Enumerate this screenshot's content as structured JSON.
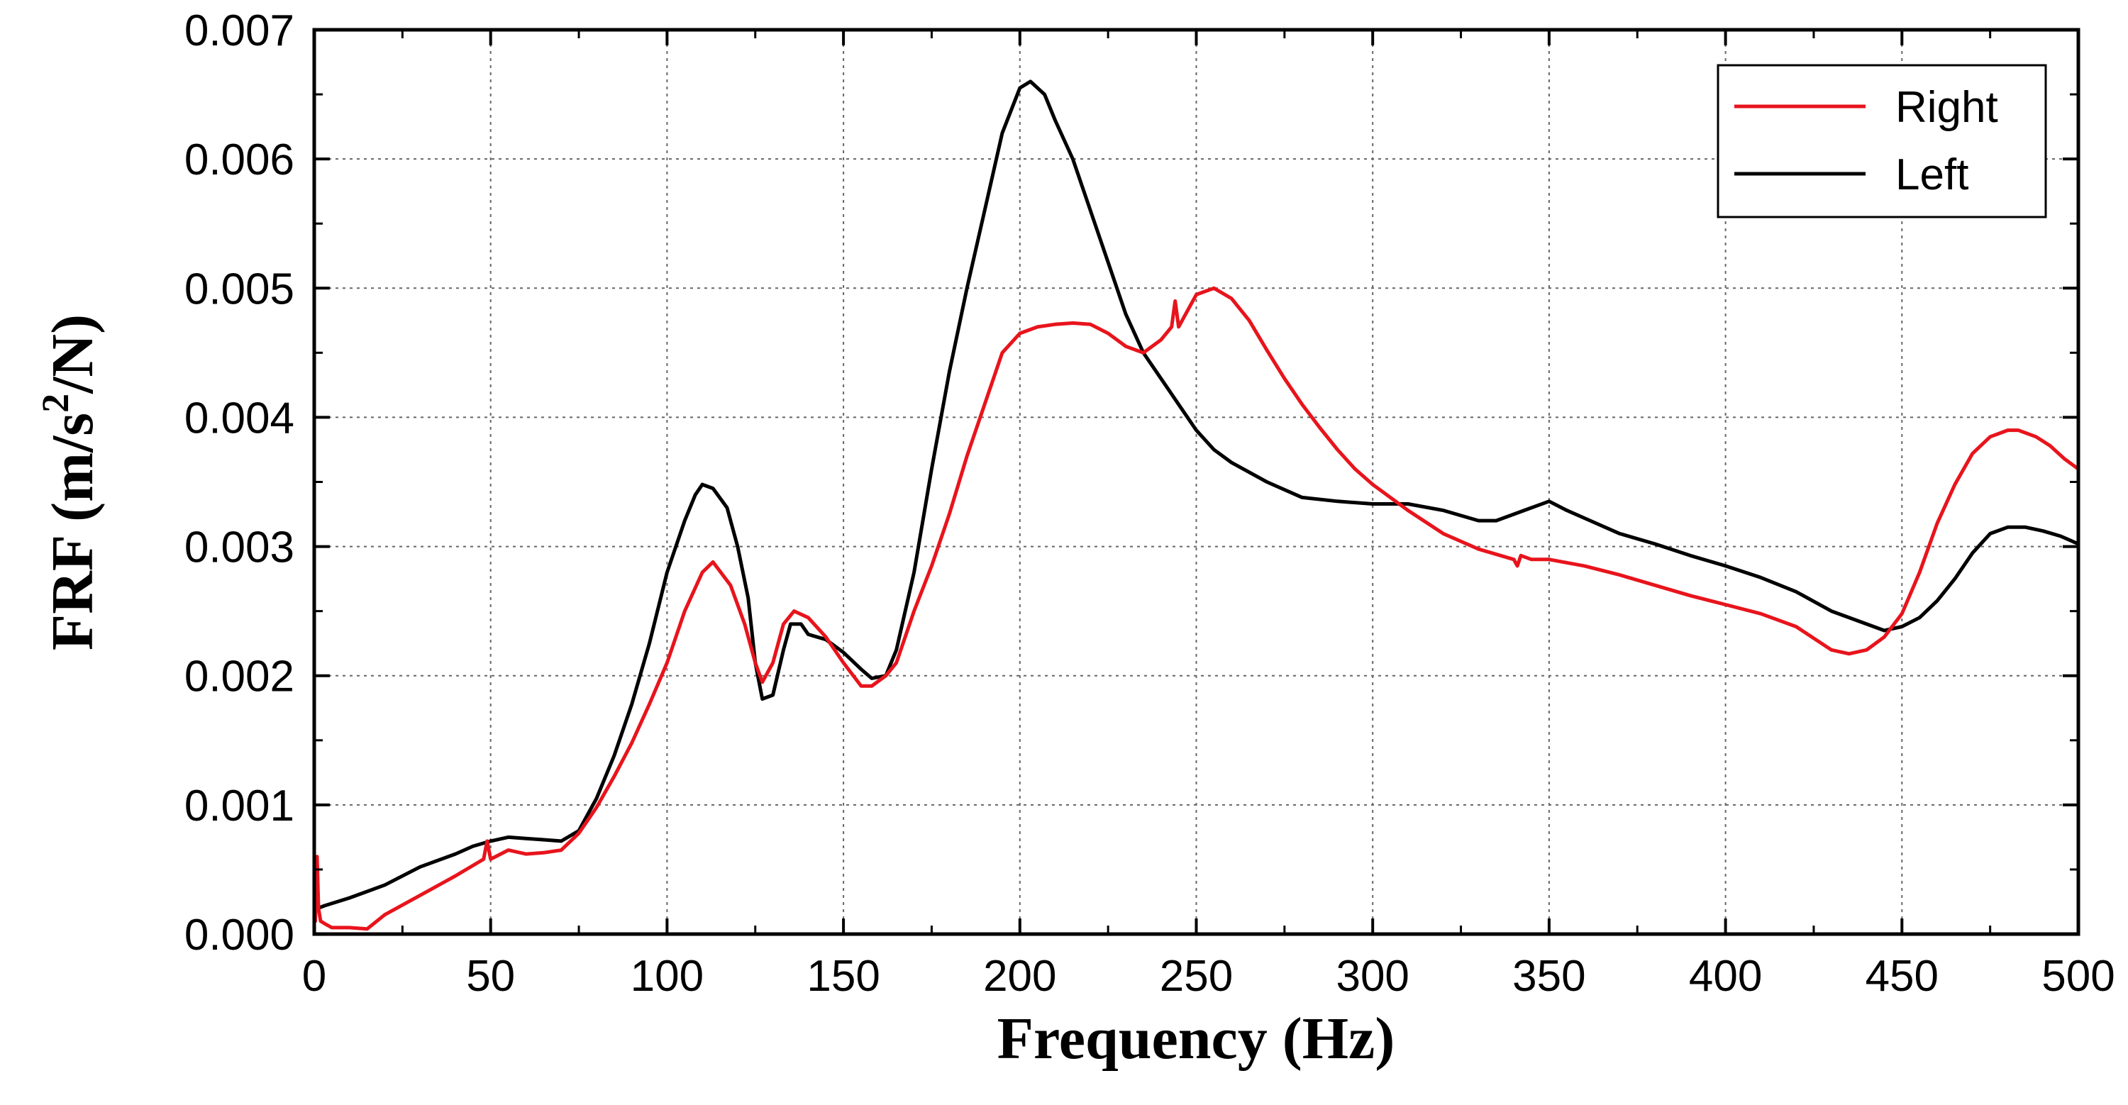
{
  "chart_data": {
    "type": "line",
    "xlabel": "Frequency (Hz)",
    "ylabel_parts": {
      "main": "FRF (m/s",
      "sup": "2",
      "tail": "/N)"
    },
    "xlim": [
      0,
      500
    ],
    "ylim": [
      0,
      0.007
    ],
    "xticks": [
      0,
      50,
      100,
      150,
      200,
      250,
      300,
      350,
      400,
      450,
      500
    ],
    "yticks": [
      0,
      0.001,
      0.002,
      0.003,
      0.004,
      0.005,
      0.006,
      0.007
    ],
    "xtick_labels": [
      "0",
      "50",
      "100",
      "150",
      "200",
      "250",
      "300",
      "350",
      "400",
      "450",
      "500"
    ],
    "ytick_labels": [
      "0.000",
      "0.001",
      "0.002",
      "0.003",
      "0.004",
      "0.005",
      "0.006",
      "0.007"
    ],
    "grid": true,
    "legend_position": "top-right",
    "colors": {
      "Right": "#e8141c",
      "Left": "#000000"
    },
    "series": [
      {
        "name": "Right",
        "color": "#e8141c",
        "x": [
          0.3,
          0.8,
          1.2,
          1.8,
          3,
          5,
          10,
          15,
          20,
          30,
          40,
          48,
          49,
          50,
          55,
          60,
          65,
          70,
          75,
          80,
          85,
          90,
          95,
          100,
          105,
          110,
          113,
          118,
          122,
          125,
          127,
          130,
          133,
          136,
          140,
          145,
          150,
          155,
          158,
          162,
          165,
          170,
          175,
          180,
          185,
          190,
          195,
          200,
          205,
          210,
          215,
          220,
          225,
          230,
          235,
          240,
          243,
          244,
          245,
          250,
          255,
          260,
          265,
          270,
          275,
          280,
          285,
          290,
          295,
          300,
          310,
          320,
          330,
          340,
          341,
          342,
          345,
          350,
          360,
          370,
          380,
          390,
          400,
          410,
          420,
          430,
          435,
          440,
          445,
          450,
          455,
          460,
          465,
          470,
          475,
          480,
          483,
          488,
          492,
          496,
          500
        ],
        "y": [
          0.0001,
          0.0006,
          0.0002,
          0.0001,
          8e-05,
          5e-05,
          5e-05,
          4e-05,
          0.00015,
          0.0003,
          0.00045,
          0.00058,
          0.00072,
          0.00058,
          0.00065,
          0.00062,
          0.00063,
          0.00065,
          0.00078,
          0.00098,
          0.00122,
          0.00148,
          0.00178,
          0.0021,
          0.0025,
          0.0028,
          0.00288,
          0.0027,
          0.0024,
          0.0021,
          0.00195,
          0.0021,
          0.0024,
          0.0025,
          0.00245,
          0.0023,
          0.0021,
          0.00192,
          0.00192,
          0.002,
          0.0021,
          0.0025,
          0.00285,
          0.00325,
          0.0037,
          0.0041,
          0.0045,
          0.00465,
          0.0047,
          0.00472,
          0.00473,
          0.00472,
          0.00465,
          0.00455,
          0.0045,
          0.0046,
          0.0047,
          0.0049,
          0.0047,
          0.00495,
          0.005,
          0.00492,
          0.00475,
          0.00452,
          0.0043,
          0.0041,
          0.00392,
          0.00375,
          0.0036,
          0.00348,
          0.00328,
          0.0031,
          0.00298,
          0.0029,
          0.00285,
          0.00293,
          0.0029,
          0.0029,
          0.00285,
          0.00278,
          0.0027,
          0.00262,
          0.00255,
          0.00248,
          0.00238,
          0.0022,
          0.00217,
          0.0022,
          0.0023,
          0.00248,
          0.0028,
          0.00318,
          0.00348,
          0.00372,
          0.00385,
          0.0039,
          0.0039,
          0.00385,
          0.00378,
          0.00368,
          0.0036
        ]
      },
      {
        "name": "Left",
        "color": "#000000",
        "x": [
          1,
          3,
          10,
          20,
          30,
          40,
          45,
          50,
          55,
          60,
          65,
          70,
          75,
          80,
          85,
          90,
          95,
          100,
          105,
          108,
          110,
          113,
          117,
          120,
          123,
          125,
          127,
          130,
          133,
          135,
          138,
          140,
          145,
          150,
          155,
          158,
          162,
          165,
          170,
          175,
          180,
          185,
          190,
          195,
          200,
          203,
          207,
          210,
          215,
          220,
          225,
          230,
          235,
          240,
          245,
          250,
          255,
          260,
          270,
          280,
          290,
          300,
          310,
          320,
          330,
          335,
          340,
          345,
          350,
          355,
          360,
          370,
          380,
          390,
          400,
          410,
          420,
          430,
          440,
          445,
          450,
          455,
          460,
          465,
          470,
          475,
          480,
          485,
          490,
          495,
          500
        ],
        "y": [
          0.0002,
          0.00022,
          0.00028,
          0.00038,
          0.00052,
          0.00062,
          0.00068,
          0.00072,
          0.00075,
          0.00074,
          0.00073,
          0.00072,
          0.0008,
          0.00105,
          0.00138,
          0.00178,
          0.00225,
          0.0028,
          0.0032,
          0.0034,
          0.00348,
          0.00345,
          0.0033,
          0.003,
          0.0026,
          0.0021,
          0.00182,
          0.00185,
          0.0022,
          0.0024,
          0.0024,
          0.00232,
          0.00228,
          0.00218,
          0.00205,
          0.00198,
          0.002,
          0.0022,
          0.0028,
          0.0036,
          0.00435,
          0.005,
          0.0056,
          0.0062,
          0.00655,
          0.0066,
          0.0065,
          0.0063,
          0.006,
          0.0056,
          0.0052,
          0.0048,
          0.0045,
          0.0043,
          0.0041,
          0.0039,
          0.00375,
          0.00365,
          0.0035,
          0.00338,
          0.00335,
          0.00333,
          0.00333,
          0.00328,
          0.0032,
          0.0032,
          0.00325,
          0.0033,
          0.00335,
          0.00328,
          0.00322,
          0.0031,
          0.00302,
          0.00293,
          0.00285,
          0.00276,
          0.00265,
          0.0025,
          0.0024,
          0.00235,
          0.00238,
          0.00245,
          0.00258,
          0.00275,
          0.00295,
          0.0031,
          0.00315,
          0.00315,
          0.00312,
          0.00308,
          0.00302
        ]
      }
    ]
  }
}
